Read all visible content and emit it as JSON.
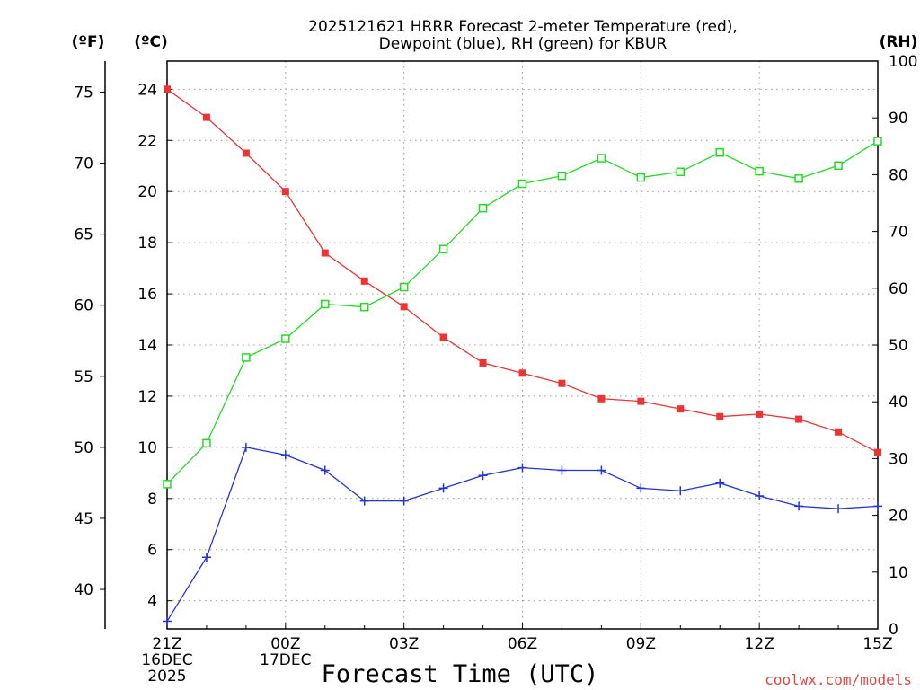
{
  "chart_data": {
    "type": "line",
    "title_line1": "2025121621 HRRR Forecast 2-meter Temperature (red),",
    "title_line2": "Dewpoint (blue), RH (green) for KBUR",
    "units": {
      "fahrenheit": "(ºF)",
      "celsius": "(ºC)",
      "rh": "(RH)"
    },
    "xlabel": "Forecast Time (UTC)",
    "credit": "coolwx.com/models",
    "x_hours": [
      0,
      1,
      2,
      3,
      4,
      5,
      6,
      7,
      8,
      9,
      10,
      11,
      12,
      13,
      14,
      15,
      16,
      17,
      18
    ],
    "x_ticks": [
      {
        "hour": 0,
        "lines": [
          "21Z",
          "16DEC",
          "2025"
        ]
      },
      {
        "hour": 3,
        "lines": [
          "00Z",
          "17DEC"
        ]
      },
      {
        "hour": 6,
        "lines": [
          "03Z"
        ]
      },
      {
        "hour": 9,
        "lines": [
          "06Z"
        ]
      },
      {
        "hour": 12,
        "lines": [
          "09Z"
        ]
      },
      {
        "hour": 15,
        "lines": [
          "12Z"
        ]
      },
      {
        "hour": 18,
        "lines": [
          "15Z"
        ]
      }
    ],
    "celsius_axis": {
      "min": 2.9,
      "max": 25.1,
      "ticks": [
        4,
        6,
        8,
        10,
        12,
        14,
        16,
        18,
        20,
        22,
        24
      ]
    },
    "fahrenheit_ticks": [
      40,
      45,
      50,
      55,
      60,
      65,
      70,
      75
    ],
    "rh_axis": {
      "min": 0,
      "max": 100,
      "ticks": [
        0,
        10,
        20,
        30,
        40,
        50,
        60,
        70,
        80,
        90,
        100
      ]
    },
    "series": [
      {
        "name": "Temperature",
        "unit": "C",
        "color": "#ee3333",
        "marker": "filled-square",
        "values": [
          24.0,
          22.9,
          21.5,
          20.0,
          17.6,
          16.5,
          15.5,
          14.3,
          13.3,
          12.9,
          12.5,
          11.9,
          11.8,
          11.5,
          11.2,
          11.3,
          11.1,
          10.6,
          9.8
        ]
      },
      {
        "name": "Dewpoint",
        "unit": "C",
        "color": "#2233dd",
        "marker": "plus",
        "values": [
          3.2,
          5.7,
          10.0,
          9.7,
          9.1,
          7.9,
          7.9,
          8.4,
          8.9,
          9.2,
          9.1,
          9.1,
          8.4,
          8.3,
          8.6,
          8.1,
          7.7,
          7.6,
          7.7
        ]
      },
      {
        "name": "RH",
        "unit": "%",
        "color": "#22dd22",
        "marker": "open-square",
        "values": [
          25.5,
          32.7,
          47.8,
          51.1,
          57.2,
          56.7,
          60.2,
          66.9,
          74.1,
          78.4,
          79.8,
          82.9,
          79.5,
          80.5,
          83.9,
          80.6,
          79.3,
          81.6,
          85.9
        ]
      }
    ]
  }
}
